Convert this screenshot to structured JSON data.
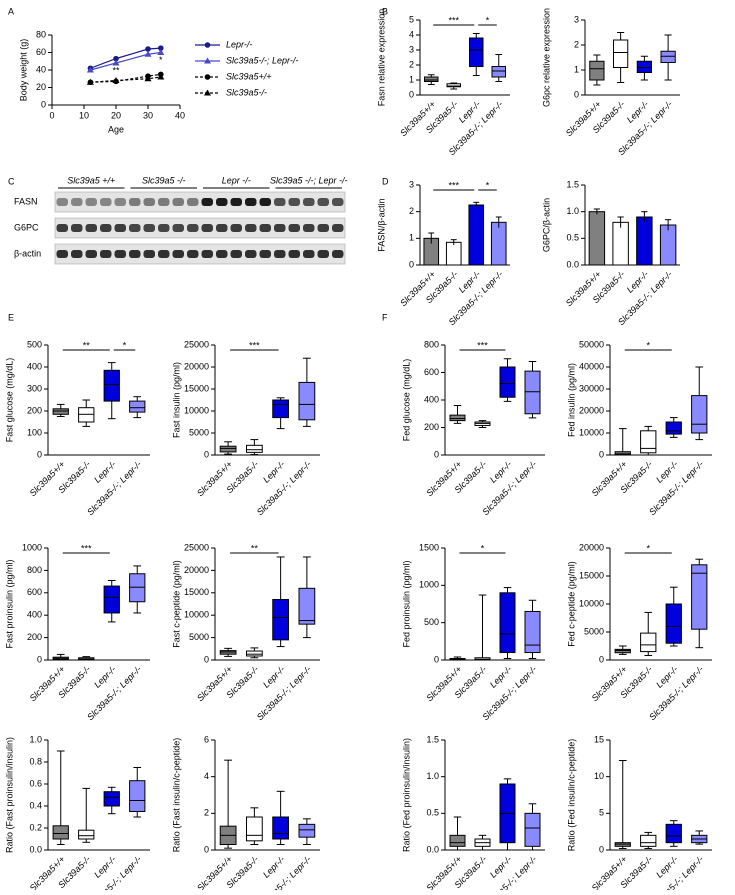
{
  "chart_data": [
    {
      "type": "line",
      "panel": "A",
      "ylabel": "Body weight (g)",
      "xlabel": "Age",
      "xlim": [
        0,
        40
      ],
      "xticks": [
        0,
        10,
        20,
        30,
        40
      ],
      "ylim": [
        0,
        80
      ],
      "yticks": [
        0,
        20,
        40,
        60,
        80
      ],
      "x": [
        12,
        20,
        30,
        34
      ],
      "series": [
        {
          "name": "Lepr-/-",
          "color": "#1a1a8c",
          "marker": "circle",
          "dashed": false,
          "values": [
            42,
            53,
            64,
            65
          ]
        },
        {
          "name": "Slc39a5-/-; Lepr-/-",
          "color": "#4a4ac8",
          "marker": "triangle",
          "dashed": false,
          "values": [
            40,
            48,
            58,
            60
          ]
        },
        {
          "name": "Slc39a5+/+",
          "color": "#000000",
          "marker": "circle",
          "dashed": true,
          "values": [
            26,
            27,
            33,
            35
          ]
        },
        {
          "name": "Slc39a5-/-",
          "color": "#000000",
          "marker": "triangle",
          "dashed": true,
          "values": [
            26,
            28,
            30,
            32
          ]
        }
      ],
      "annotations": [
        {
          "text": "**",
          "series": 1,
          "index": 1
        },
        {
          "text": "*",
          "series": 1,
          "index": 3
        }
      ]
    },
    {
      "type": "box",
      "panel": "B",
      "ylabel": "Fasn relative expression",
      "ylim": [
        0,
        5
      ],
      "yticks": [
        0,
        1,
        2,
        3,
        4,
        5
      ],
      "categories": [
        "Slc39a5+/+",
        "Slc39a5-/-",
        "Lepr-/-",
        "Slc39a5-/-; Lepr-/-"
      ],
      "colors": [
        "#808080",
        "#ffffff",
        "#0000dd",
        "#8a8aff"
      ],
      "boxes": [
        {
          "min": 0.7,
          "q1": 0.9,
          "median": 1.0,
          "q3": 1.2,
          "max": 1.35
        },
        {
          "min": 0.4,
          "q1": 0.55,
          "median": 0.6,
          "q3": 0.75,
          "max": 0.8
        },
        {
          "min": 1.3,
          "q1": 1.9,
          "median": 3.0,
          "q3": 3.8,
          "max": 4.1
        },
        {
          "min": 0.9,
          "q1": 1.2,
          "median": 1.6,
          "q3": 1.9,
          "max": 2.7
        }
      ],
      "significance": [
        {
          "label": "***",
          "from": 0,
          "to": 2
        },
        {
          "label": "*",
          "from": 2,
          "to": 3
        }
      ]
    },
    {
      "type": "box",
      "ylabel": "G6pc relative expression",
      "ylim": [
        0,
        3
      ],
      "yticks": [
        0,
        1,
        2,
        3
      ],
      "categories": [
        "Slc39a5+/+",
        "Slc39a5-/-",
        "Lepr-/-",
        "Slc39a5-/-; Lepr-/-"
      ],
      "colors": [
        "#808080",
        "#ffffff",
        "#0000dd",
        "#8a8aff"
      ],
      "boxes": [
        {
          "min": 0.4,
          "q1": 0.6,
          "median": 1.05,
          "q3": 1.35,
          "max": 1.6
        },
        {
          "min": 0.5,
          "q1": 1.1,
          "median": 1.7,
          "q3": 2.2,
          "max": 2.5
        },
        {
          "min": 0.6,
          "q1": 0.9,
          "median": 1.1,
          "q3": 1.35,
          "max": 1.55
        },
        {
          "min": 0.6,
          "q1": 1.3,
          "median": 1.55,
          "q3": 1.75,
          "max": 2.4
        }
      ]
    },
    {
      "type": "bar",
      "panel": "D",
      "ylabel": "FASN/β-actin",
      "ylim": [
        0,
        3
      ],
      "yticks": [
        0,
        1,
        2,
        3
      ],
      "categories": [
        "Slc39a5+/+",
        "Slc39a5-/-",
        "Lepr-/-",
        "Slc39a5-/-; Lepr-/-"
      ],
      "colors": [
        "#808080",
        "#ffffff",
        "#0000dd",
        "#8a8aff"
      ],
      "values": [
        1.0,
        0.85,
        2.25,
        1.6
      ],
      "errors": [
        0.2,
        0.1,
        0.1,
        0.2
      ],
      "significance": [
        {
          "label": "***",
          "from": 0,
          "to": 2
        },
        {
          "label": "*",
          "from": 2,
          "to": 3
        }
      ]
    },
    {
      "type": "bar",
      "ylabel": "G6PC/β-actin",
      "ylim": [
        0,
        1.5
      ],
      "yticks": [
        {
          "value": 0,
          "label": "0.0"
        },
        0.5,
        {
          "value": 1,
          "label": "1.0"
        },
        1.5
      ],
      "categories": [
        "Slc39a5+/+",
        "Slc39a5-/-",
        "Lepr-/-",
        "Slc39a5-/-; Lepr-/-"
      ],
      "colors": [
        "#808080",
        "#ffffff",
        "#0000dd",
        "#8a8aff"
      ],
      "values": [
        1.0,
        0.8,
        0.9,
        0.75
      ],
      "errors": [
        0.05,
        0.1,
        0.1,
        0.1
      ]
    },
    {
      "type": "box",
      "panel": "E",
      "ylabel": "Fast glucose (mg/dL)",
      "ylim": [
        0,
        500
      ],
      "yticks": [
        0,
        100,
        200,
        300,
        400,
        500
      ],
      "categories": [
        "Slc39a5+/+",
        "Slc39a5-/-",
        "Lepr-/-",
        "Slc39a5-/-; Lepr-/-"
      ],
      "colors": [
        "#808080",
        "#ffffff",
        "#0000dd",
        "#8a8aff"
      ],
      "boxes": [
        {
          "min": 175,
          "q1": 185,
          "median": 200,
          "q3": 210,
          "max": 230
        },
        {
          "min": 130,
          "q1": 150,
          "median": 185,
          "q3": 215,
          "max": 250
        },
        {
          "min": 165,
          "q1": 245,
          "median": 320,
          "q3": 385,
          "max": 420
        },
        {
          "min": 170,
          "q1": 195,
          "median": 215,
          "q3": 245,
          "max": 265
        }
      ],
      "significance": [
        {
          "label": "**",
          "from": 0,
          "to": 2
        },
        {
          "label": "*",
          "from": 2,
          "to": 3
        }
      ]
    },
    {
      "type": "box",
      "ylabel": "Fast insulin (pg/ml)",
      "ylim": [
        0,
        25000
      ],
      "yticks": [
        0,
        5000,
        10000,
        15000,
        20000,
        25000
      ],
      "categories": [
        "Slc39a5+/+",
        "Slc39a5-/-",
        "Lepr-/-",
        "Slc39a5-/-; Lepr-/-"
      ],
      "colors": [
        "#808080",
        "#ffffff",
        "#0000dd",
        "#8a8aff"
      ],
      "boxes": [
        {
          "min": 200,
          "q1": 700,
          "median": 1500,
          "q3": 2000,
          "max": 3000
        },
        {
          "min": 100,
          "q1": 600,
          "median": 1200,
          "q3": 2200,
          "max": 3500
        },
        {
          "min": 6000,
          "q1": 8500,
          "median": 11500,
          "q3": 12500,
          "max": 13000
        },
        {
          "min": 6500,
          "q1": 8000,
          "median": 11500,
          "q3": 16500,
          "max": 22000
        }
      ],
      "significance": [
        {
          "label": "***",
          "from": 0,
          "to": 2
        }
      ]
    },
    {
      "type": "box",
      "panel": "F",
      "ylabel": "Fed glucose (mg/dL)",
      "ylim": [
        0,
        800
      ],
      "yticks": [
        0,
        200,
        400,
        600,
        800
      ],
      "categories": [
        "Slc39a5+/+",
        "Slc39a5-/-",
        "Lepr-/-",
        "Slc39a5-/-; Lepr-/-"
      ],
      "colors": [
        "#808080",
        "#ffffff",
        "#0000dd",
        "#8a8aff"
      ],
      "boxes": [
        {
          "min": 230,
          "q1": 250,
          "median": 265,
          "q3": 290,
          "max": 360
        },
        {
          "min": 200,
          "q1": 215,
          "median": 230,
          "q3": 240,
          "max": 250
        },
        {
          "min": 390,
          "q1": 420,
          "median": 520,
          "q3": 640,
          "max": 700
        },
        {
          "min": 270,
          "q1": 300,
          "median": 460,
          "q3": 610,
          "max": 680
        }
      ],
      "significance": [
        {
          "label": "***",
          "from": 0,
          "to": 2
        }
      ]
    },
    {
      "type": "box",
      "ylabel": "Fed insulin (pg/ml)",
      "ylim": [
        0,
        50000
      ],
      "yticks": [
        0,
        10000,
        20000,
        30000,
        40000,
        50000
      ],
      "categories": [
        "Slc39a5+/+",
        "Slc39a5-/-",
        "Lepr-/-",
        "Slc39a5-/-; Lepr-/-"
      ],
      "colors": [
        "#808080",
        "#ffffff",
        "#0000dd",
        "#8a8aff"
      ],
      "boxes": [
        {
          "min": 0,
          "q1": 200,
          "median": 500,
          "q3": 1500,
          "max": 12000
        },
        {
          "min": 0,
          "q1": 1000,
          "median": 3000,
          "q3": 11000,
          "max": 13000
        },
        {
          "min": 8000,
          "q1": 9500,
          "median": 11000,
          "q3": 15000,
          "max": 17000
        },
        {
          "min": 7000,
          "q1": 10000,
          "median": 14000,
          "q3": 27000,
          "max": 40000
        }
      ],
      "significance": [
        {
          "label": "*",
          "from": 0,
          "to": 2
        }
      ]
    },
    {
      "type": "box",
      "ylabel": "Fast proinsulin (pg/ml)",
      "ylim": [
        0,
        1000
      ],
      "yticks": [
        0,
        200,
        400,
        600,
        800,
        1000
      ],
      "categories": [
        "Slc39a5+/+",
        "Slc39a5-/-",
        "Lepr-/-",
        "Slc39a5-/-; Lepr-/-"
      ],
      "colors": [
        "#808080",
        "#ffffff",
        "#0000dd",
        "#8a8aff"
      ],
      "boxes": [
        {
          "min": 0,
          "q1": 5,
          "median": 15,
          "q3": 25,
          "max": 50
        },
        {
          "min": 0,
          "q1": 5,
          "median": 10,
          "q3": 20,
          "max": 30
        },
        {
          "min": 340,
          "q1": 420,
          "median": 560,
          "q3": 660,
          "max": 710
        },
        {
          "min": 420,
          "q1": 520,
          "median": 650,
          "q3": 770,
          "max": 840
        }
      ],
      "significance": [
        {
          "label": "***",
          "from": 0,
          "to": 2
        }
      ]
    },
    {
      "type": "box",
      "ylabel": "Fast c-peptide (pg/ml)",
      "ylim": [
        0,
        25000
      ],
      "yticks": [
        0,
        5000,
        10000,
        15000,
        20000,
        25000
      ],
      "categories": [
        "Slc39a5+/+",
        "Slc39a5-/-",
        "Lepr-/-",
        "Slc39a5-/-; Lepr-/-"
      ],
      "colors": [
        "#808080",
        "#ffffff",
        "#0000dd",
        "#8a8aff"
      ],
      "boxes": [
        {
          "min": 800,
          "q1": 1300,
          "median": 1800,
          "q3": 2100,
          "max": 2600
        },
        {
          "min": 500,
          "q1": 900,
          "median": 1300,
          "q3": 2000,
          "max": 2700
        },
        {
          "min": 3000,
          "q1": 4500,
          "median": 9500,
          "q3": 13500,
          "max": 23000
        },
        {
          "min": 5000,
          "q1": 8000,
          "median": 8800,
          "q3": 16000,
          "max": 23000
        }
      ],
      "significance": [
        {
          "label": "**",
          "from": 0,
          "to": 2
        }
      ]
    },
    {
      "type": "box",
      "ylabel": "Fed proinsulin (pg/ml)",
      "ylim": [
        0,
        1500
      ],
      "yticks": [
        0,
        500,
        1000,
        1500
      ],
      "categories": [
        "Slc39a5+/+",
        "Slc39a5-/-",
        "Lepr-/-",
        "Slc39a5-/-; Lepr-/-"
      ],
      "colors": [
        "#808080",
        "#ffffff",
        "#0000dd",
        "#8a8aff"
      ],
      "boxes": [
        {
          "min": 0,
          "q1": 0,
          "median": 10,
          "q3": 20,
          "max": 40
        },
        {
          "min": 0,
          "q1": 0,
          "median": 10,
          "q3": 30,
          "max": 870
        },
        {
          "min": 20,
          "q1": 100,
          "median": 350,
          "q3": 900,
          "max": 970
        },
        {
          "min": 20,
          "q1": 100,
          "median": 200,
          "q3": 650,
          "max": 800
        }
      ],
      "significance": [
        {
          "label": "*",
          "from": 0,
          "to": 2
        }
      ]
    },
    {
      "type": "box",
      "ylabel": "Fed c-peptide (pg/ml)",
      "ylim": [
        0,
        20000
      ],
      "yticks": [
        0,
        5000,
        10000,
        15000,
        20000
      ],
      "categories": [
        "Slc39a5+/+",
        "Slc39a5-/-",
        "Lepr-/-",
        "Slc39a5-/-; Lepr-/-"
      ],
      "colors": [
        "#808080",
        "#ffffff",
        "#0000dd",
        "#8a8aff"
      ],
      "boxes": [
        {
          "min": 1000,
          "q1": 1300,
          "median": 1700,
          "q3": 1900,
          "max": 2500
        },
        {
          "min": 800,
          "q1": 1500,
          "median": 2700,
          "q3": 4800,
          "max": 8500
        },
        {
          "min": 2500,
          "q1": 3000,
          "median": 6000,
          "q3": 10000,
          "max": 13000
        },
        {
          "min": 2200,
          "q1": 5500,
          "median": 15500,
          "q3": 17000,
          "max": 18000
        }
      ],
      "significance": [
        {
          "label": "*",
          "from": 0,
          "to": 2
        }
      ]
    },
    {
      "type": "box",
      "ylabel": "Ratio (Fast proinsulin/insulin)",
      "ylim": [
        0,
        1
      ],
      "yticks": [
        {
          "value": 0,
          "label": "0.0"
        },
        0.2,
        0.4,
        0.6,
        0.8,
        {
          "value": 1,
          "label": "1.0"
        }
      ],
      "categories": [
        "Slc39a5+/+",
        "Slc39a5-/-",
        "Lepr-/-",
        "Slc39a5-/-; Lepr-/-"
      ],
      "colors": [
        "#808080",
        "#ffffff",
        "#0000dd",
        "#8a8aff"
      ],
      "boxes": [
        {
          "min": 0.05,
          "q1": 0.1,
          "median": 0.15,
          "q3": 0.22,
          "max": 0.9
        },
        {
          "min": 0.07,
          "q1": 0.1,
          "median": 0.13,
          "q3": 0.18,
          "max": 0.56
        },
        {
          "min": 0.33,
          "q1": 0.4,
          "median": 0.48,
          "q3": 0.53,
          "max": 0.57
        },
        {
          "min": 0.3,
          "q1": 0.35,
          "median": 0.45,
          "q3": 0.63,
          "max": 0.75
        }
      ]
    },
    {
      "type": "box",
      "ylabel": "Ratio (Fast insulin/c-peptide)",
      "ylim": [
        0,
        6
      ],
      "yticks": [
        0,
        2,
        4,
        6
      ],
      "categories": [
        "Slc39a5+/+",
        "Slc39a5-/-",
        "Lepr-/-",
        "Slc39a5-/-; Lepr-/-"
      ],
      "colors": [
        "#808080",
        "#ffffff",
        "#0000dd",
        "#8a8aff"
      ],
      "boxes": [
        {
          "min": 0.1,
          "q1": 0.3,
          "median": 0.8,
          "q3": 1.3,
          "max": 4.9
        },
        {
          "min": 0.3,
          "q1": 0.5,
          "median": 0.8,
          "q3": 1.8,
          "max": 2.3
        },
        {
          "min": 0.3,
          "q1": 0.6,
          "median": 0.9,
          "q3": 1.8,
          "max": 3.2
        },
        {
          "min": 0.3,
          "q1": 0.7,
          "median": 1.1,
          "q3": 1.4,
          "max": 1.7
        }
      ]
    },
    {
      "type": "box",
      "ylabel": "Ratio (Fed proinsulin/insulin)",
      "ylim": [
        0,
        1.5
      ],
      "yticks": [
        {
          "value": 0,
          "label": "0.0"
        },
        0.5,
        {
          "value": 1,
          "label": "1.0"
        },
        1.5
      ],
      "categories": [
        "Slc39a5+/+",
        "Slc39a5-/-",
        "Lepr-/-",
        "Slc39a5-/-; Lepr-/-"
      ],
      "colors": [
        "#808080",
        "#ffffff",
        "#0000dd",
        "#8a8aff"
      ],
      "boxes": [
        {
          "min": 0,
          "q1": 0.05,
          "median": 0.1,
          "q3": 0.2,
          "max": 0.45
        },
        {
          "min": 0,
          "q1": 0.05,
          "median": 0.1,
          "q3": 0.15,
          "max": 0.2
        },
        {
          "min": 0,
          "q1": 0.1,
          "median": 0.5,
          "q3": 0.9,
          "max": 0.97
        },
        {
          "min": 0,
          "q1": 0.05,
          "median": 0.3,
          "q3": 0.5,
          "max": 0.63
        }
      ]
    },
    {
      "type": "box",
      "ylabel": "Ratio (Fed insulin/c-peptide)",
      "ylim": [
        0,
        15
      ],
      "yticks": [
        0,
        5,
        10,
        15
      ],
      "categories": [
        "Slc39a5+/+",
        "Slc39a5-/-",
        "Lepr-/-",
        "Slc39a5-/-; Lepr-/-"
      ],
      "colors": [
        "#808080",
        "#ffffff",
        "#0000dd",
        "#8a8aff"
      ],
      "boxes": [
        {
          "min": 0.2,
          "q1": 0.5,
          "median": 0.8,
          "q3": 1.0,
          "max": 12.2
        },
        {
          "min": 0.2,
          "q1": 0.5,
          "median": 1,
          "q3": 2,
          "max": 2.4
        },
        {
          "min": 0.5,
          "q1": 1,
          "median": 1.9,
          "q3": 3.5,
          "max": 4
        },
        {
          "min": 0.8,
          "q1": 1,
          "median": 1.5,
          "q3": 2,
          "max": 2.6
        }
      ]
    }
  ],
  "blot": {
    "panel": "C",
    "groups": [
      "Slc39a5 +/+",
      "Slc39a5 -/-",
      "Lepr -/-",
      "Slc39a5 -/-; Lepr -/-"
    ],
    "rows": [
      "FASN",
      "G6PC",
      "β-actin"
    ]
  }
}
